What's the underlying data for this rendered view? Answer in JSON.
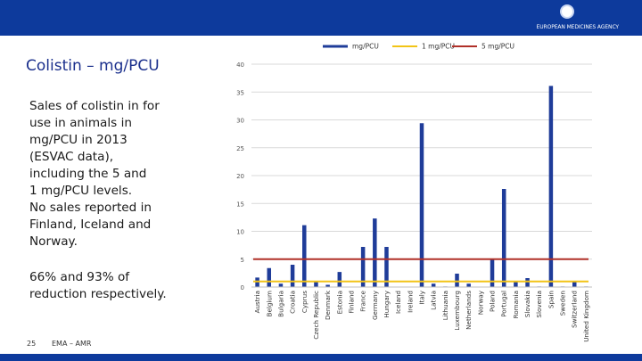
{
  "header": {
    "agency": "EUROPEAN MEDICINES AGENCY",
    "colors": {
      "bar": "#0d3a9c"
    }
  },
  "slide": {
    "title": "Colistin – mg/PCU",
    "paragraph1_lines": [
      "Sales of colistin in for",
      "use in animals in",
      "mg/PCU in 2013",
      "(ESVAC data),",
      "including the 5 and",
      "1 mg/PCU levels.",
      "No sales reported in",
      "Finland, Iceland and",
      "Norway."
    ],
    "paragraph2_lines": [
      "66% and 93% of",
      "reduction respectively."
    ]
  },
  "footer": {
    "page_number": "25",
    "label": "EMA – AMR"
  },
  "chart_data": {
    "type": "bar",
    "categories": [
      "Austria",
      "Belgium",
      "Bulgaria",
      "Croatia",
      "Cyprus",
      "Czech Republic",
      "Denmark",
      "Estonia",
      "Finland",
      "France",
      "Germany",
      "Hungary",
      "Iceland",
      "Ireland",
      "Italy",
      "Latvia",
      "Lithuania",
      "Luxembourg",
      "Netherlands",
      "Norway",
      "Poland",
      "Portugal",
      "Romania",
      "Slovakia",
      "Slovenia",
      "Spain",
      "Sweden",
      "Switzerland",
      "United Kingdom"
    ],
    "series": [
      {
        "name": "mg/PCU",
        "type": "bar",
        "color": "#1f3c99",
        "values": [
          1.7,
          3.4,
          0.6,
          4.0,
          11.1,
          0.9,
          0.4,
          2.7,
          0,
          7.2,
          12.3,
          7.2,
          0,
          0,
          29.4,
          0.6,
          0.1,
          2.4,
          0.6,
          0,
          4.9,
          17.6,
          0.9,
          1.6,
          0.1,
          36.1,
          0.1,
          0.9,
          0.1
        ]
      },
      {
        "name": "1 mg/PCU",
        "type": "line",
        "color": "#f2c417",
        "value": 1
      },
      {
        "name": "5 mg/PCU",
        "type": "line",
        "color": "#b03028",
        "value": 5
      }
    ],
    "ylim": [
      0,
      40
    ],
    "yticks": [
      0,
      5,
      10,
      15,
      20,
      25,
      30,
      35,
      40
    ],
    "grid": true,
    "legend_position": "top"
  }
}
